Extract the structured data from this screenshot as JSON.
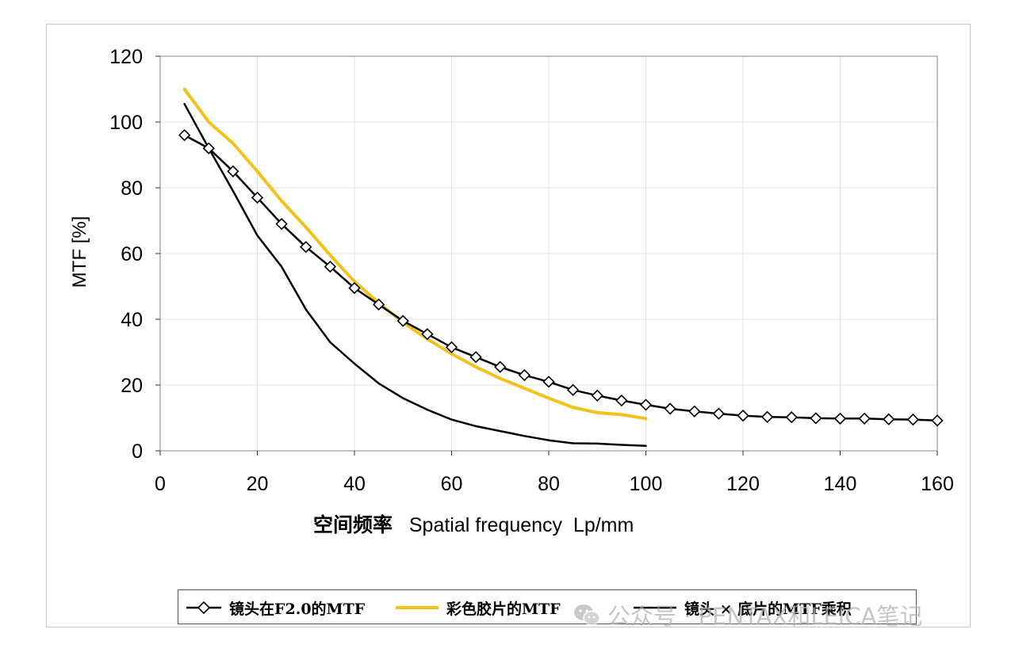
{
  "chart_data": {
    "type": "line",
    "xlabel_cjk": "空间频率",
    "xlabel_en": "Spatial frequency  Lp/mm",
    "ylabel": "MTF  [%]",
    "xlim": [
      0,
      160
    ],
    "ylim": [
      0,
      120
    ],
    "xticks": [
      0,
      20,
      40,
      60,
      80,
      100,
      120,
      140,
      160
    ],
    "yticks": [
      0,
      20,
      40,
      60,
      80,
      100,
      120
    ],
    "grid": true,
    "legend_position": "bottom",
    "series": [
      {
        "name": "镜头在F2.0的MTF",
        "color": "#000000",
        "marker": "diamond",
        "x": [
          5,
          10,
          15,
          20,
          25,
          30,
          35,
          40,
          45,
          50,
          55,
          60,
          65,
          70,
          75,
          80,
          85,
          90,
          95,
          100,
          105,
          110,
          115,
          120,
          125,
          130,
          135,
          140,
          145,
          150,
          155,
          160
        ],
        "y": [
          96,
          92,
          85,
          77,
          69,
          62,
          56,
          49.5,
          44.5,
          39.5,
          35.5,
          31.5,
          28.5,
          25.5,
          23,
          21,
          18.5,
          16.8,
          15.3,
          14,
          12.8,
          12,
          11.3,
          10.7,
          10.3,
          10.2,
          9.9,
          9.8,
          9.8,
          9.6,
          9.5,
          9.2
        ]
      },
      {
        "name": "彩色胶片的MTF",
        "color": "#f2c21b",
        "marker": "none",
        "x": [
          5,
          10,
          15,
          20,
          25,
          30,
          35,
          40,
          45,
          50,
          55,
          60,
          65,
          70,
          75,
          80,
          85,
          90,
          95,
          100
        ],
        "y": [
          110,
          100,
          93.5,
          85,
          76,
          68,
          59.5,
          51.5,
          45,
          39,
          34,
          29.5,
          25.5,
          22,
          19,
          16,
          13.2,
          11.6,
          11,
          9.8
        ]
      },
      {
        "name": "镜头 × 底片的MTF乘积",
        "color": "#000000",
        "marker": "none",
        "x": [
          5,
          10,
          15,
          20,
          25,
          30,
          35,
          40,
          45,
          50,
          55,
          60,
          65,
          70,
          75,
          80,
          85,
          90,
          95,
          100
        ],
        "y": [
          105.5,
          92,
          79,
          65.5,
          56,
          43,
          33,
          26.5,
          20.5,
          16,
          12.5,
          9.5,
          7.5,
          6,
          4.5,
          3.2,
          2.3,
          2.2,
          1.8,
          1.5
        ]
      }
    ]
  },
  "legend": {
    "item1": "镜头在F2.0的MTF",
    "item2": "彩色胶片的MTF",
    "item3": "镜头 × 底片的MTF乘积"
  },
  "watermark": {
    "text": "公众号 · PENTAX和LEICA笔记",
    "icon": "wechat-icon"
  }
}
